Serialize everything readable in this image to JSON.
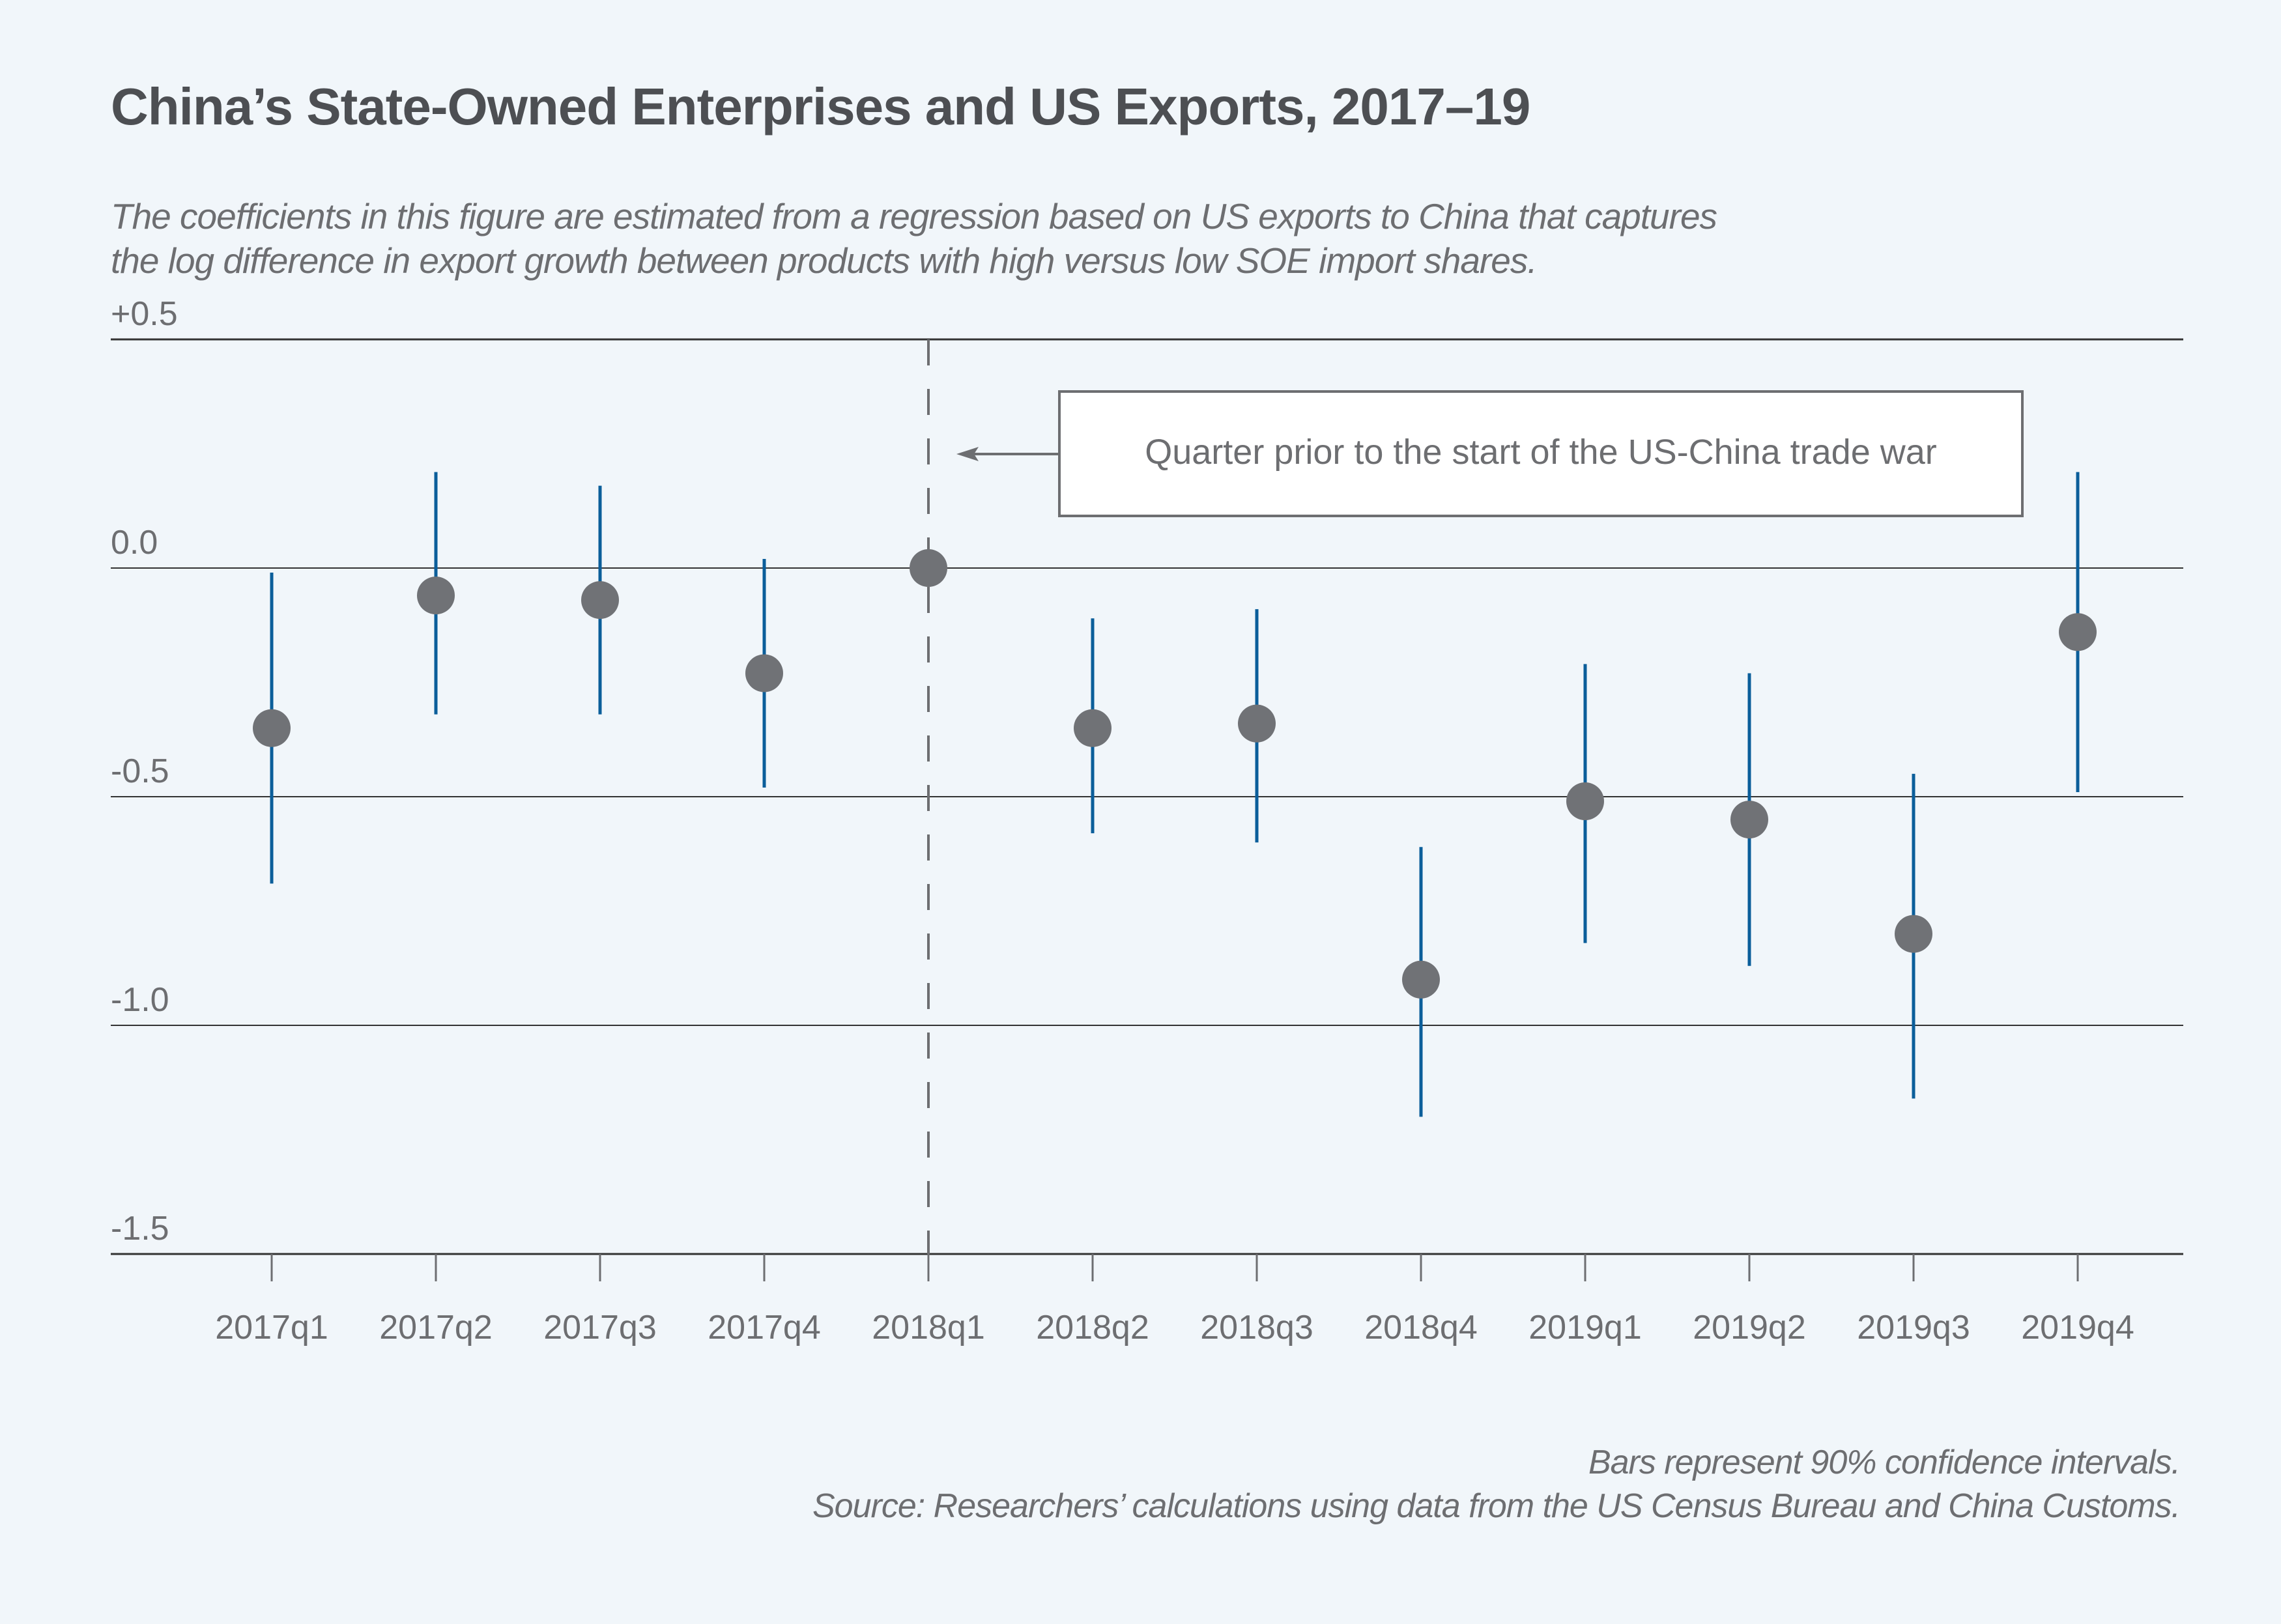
{
  "title": "China’s State-Owned Enterprises and US Exports, 2017–19",
  "subtitle_lines": [
    "The coefficients in this figure are estimated from a regression based on US exports to China that captures",
    "the log difference in export growth between products with high versus low SOE import shares."
  ],
  "notes": [
    "Bars represent 90% confidence intervals.",
    "Source: Researchers’ calculations using data from the US Census Bureau and China Customs."
  ],
  "colors": {
    "background": "#f1f6fa",
    "point": "#707276",
    "ci_bar": "#0b5e9a",
    "gridline": "#333333",
    "dashed_line": "#6d6e71",
    "text": "#4d4f53"
  },
  "chart_data": {
    "type": "scatter",
    "subtype": "coefficient plot with confidence intervals",
    "title": "China’s State-Owned Enterprises and US Exports, 2017–19",
    "xlabel": "",
    "ylabel": "",
    "ylim": [
      -1.5,
      0.5
    ],
    "y_ticks": [
      0.5,
      0.0,
      -0.5,
      -1.0,
      -1.5
    ],
    "y_tick_labels": [
      "+0.5",
      "0.0",
      "-0.5",
      "-1.0",
      "-1.5"
    ],
    "grid": true,
    "categories": [
      "2017q1",
      "2017q2",
      "2017q3",
      "2017q4",
      "2018q1",
      "2018q2",
      "2018q3",
      "2018q4",
      "2019q1",
      "2019q2",
      "2019q3",
      "2019q4"
    ],
    "series": [
      {
        "name": "Coefficient",
        "values": [
          -0.35,
          -0.06,
          -0.07,
          -0.23,
          0.0,
          -0.35,
          -0.34,
          -0.9,
          -0.51,
          -0.55,
          -0.8,
          -0.14
        ],
        "ci_low": [
          -0.69,
          -0.32,
          -0.32,
          -0.48,
          null,
          -0.58,
          -0.6,
          -1.2,
          -0.82,
          -0.87,
          -1.16,
          -0.49
        ],
        "ci_high": [
          -0.01,
          0.21,
          0.18,
          0.02,
          null,
          -0.11,
          -0.09,
          -0.61,
          -0.21,
          -0.23,
          -0.45,
          0.21
        ]
      }
    ],
    "reference_line": {
      "category": "2018q1",
      "style": "dashed"
    },
    "annotation": {
      "text": "Quarter prior to the start of the US-China trade war",
      "points_to": "2018q1"
    }
  }
}
